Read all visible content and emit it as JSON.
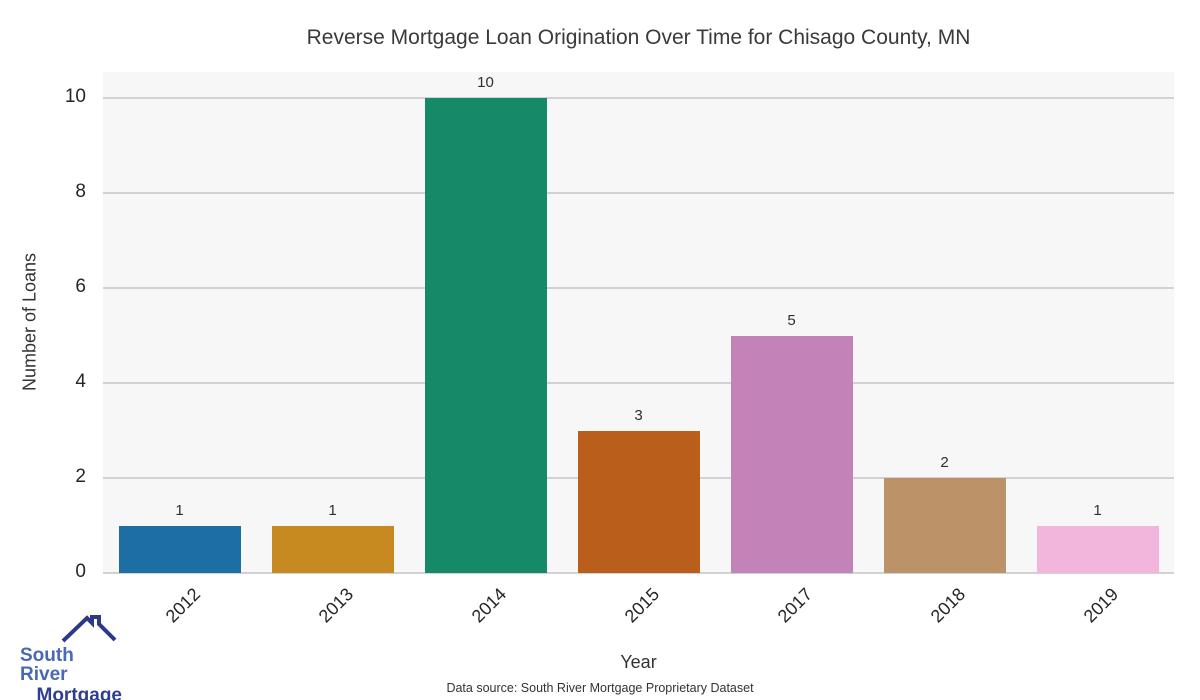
{
  "chart_data": {
    "type": "bar",
    "title": "Reverse Mortgage Loan Origination Over Time for Chisago County, MN",
    "categories": [
      "2012",
      "2013",
      "2014",
      "2015",
      "2017",
      "2018",
      "2019"
    ],
    "values": [
      1,
      1,
      10,
      3,
      5,
      2,
      1
    ],
    "bar_colors": [
      "#1d6fa3",
      "#c68a21",
      "#168a68",
      "#ba5e1c",
      "#c383b8",
      "#bc9369",
      "#f2b5dc"
    ],
    "xlabel": "Year",
    "ylabel": "Number of Loans",
    "yticks": [
      0,
      2,
      4,
      6,
      8,
      10
    ],
    "ylim": [
      0,
      10.55
    ],
    "grid": true,
    "legend": "none",
    "plot_bg_color": "#f7f7f7",
    "grid_color": "#d2d2d4",
    "value_labels": [
      "1",
      "1",
      "10",
      "3",
      "5",
      "2",
      "1"
    ]
  },
  "footer": {
    "data_source": "Data source: South River Mortgage Proprietary Dataset"
  },
  "logo": {
    "line1": "South River",
    "line2": "Mortgage",
    "line1_color": "#4a69b4",
    "line2_color": "#2f3e92",
    "icon_color": "#2c3a85"
  }
}
